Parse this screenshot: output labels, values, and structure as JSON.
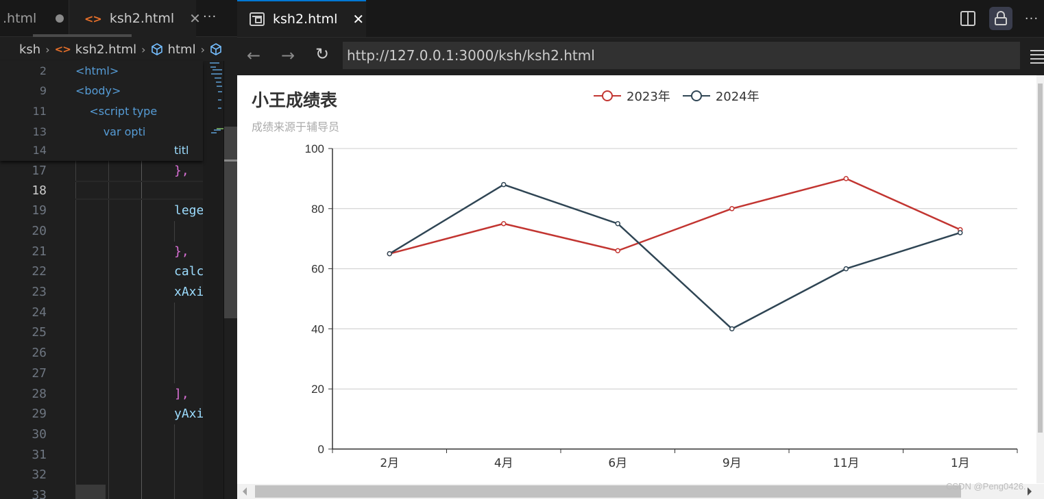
{
  "editor": {
    "tabs": [
      {
        "label": ".html",
        "modified": true
      },
      {
        "label": "ksh2.html",
        "active": true
      }
    ],
    "more_label": "···",
    "breadcrumb": [
      "ksh",
      "ksh2.html",
      "html"
    ],
    "lines": [
      {
        "n": "2",
        "code": "<html>"
      },
      {
        "n": "9",
        "code": "<body>"
      },
      {
        "n": "11",
        "code": "    <script type"
      },
      {
        "n": "13",
        "code": "        var opti"
      },
      {
        "n": "14",
        "code": "titl"
      },
      {
        "n": "17",
        "code": "},"
      },
      {
        "n": "18",
        "code": ""
      },
      {
        "n": "19",
        "code": "lege"
      },
      {
        "n": "20",
        "code": ""
      },
      {
        "n": "21",
        "code": "},"
      },
      {
        "n": "22",
        "code": "calc"
      },
      {
        "n": "23",
        "code": "xAxi"
      },
      {
        "n": "24",
        "code": ""
      },
      {
        "n": "25",
        "code": ""
      },
      {
        "n": "26",
        "code": ""
      },
      {
        "n": "27",
        "code": ""
      },
      {
        "n": "28",
        "code": "],"
      },
      {
        "n": "29",
        "code": "yAxi"
      },
      {
        "n": "30",
        "code": ""
      },
      {
        "n": "31",
        "code": ""
      },
      {
        "n": "32",
        "code": ""
      },
      {
        "n": "33",
        "code": ""
      }
    ]
  },
  "browser": {
    "tab_label": "ksh2.html",
    "url": "http://127.0.0.1:3000/ksh/ksh2.html",
    "icons": {
      "back": "←",
      "forward": "→",
      "reload": "↻",
      "more": "···"
    }
  },
  "chart_data": {
    "type": "line",
    "title": "小王成绩表",
    "subtitle": "成绩来源于辅导员",
    "categories": [
      "2月",
      "4月",
      "6月",
      "9月",
      "11月",
      "1月"
    ],
    "series": [
      {
        "name": "2023年",
        "color": "#c23531",
        "values": [
          65,
          75,
          66,
          80,
          90,
          73
        ]
      },
      {
        "name": "2024年",
        "color": "#2f4554",
        "values": [
          65,
          88,
          75,
          40,
          60,
          72
        ]
      }
    ],
    "yticks": [
      0,
      20,
      40,
      60,
      80,
      100
    ],
    "ylim": [
      0,
      100
    ],
    "xlabel": "",
    "ylabel": "",
    "grid": true,
    "legend_position": "top-center"
  },
  "watermark": "CSDN @Peng0426."
}
